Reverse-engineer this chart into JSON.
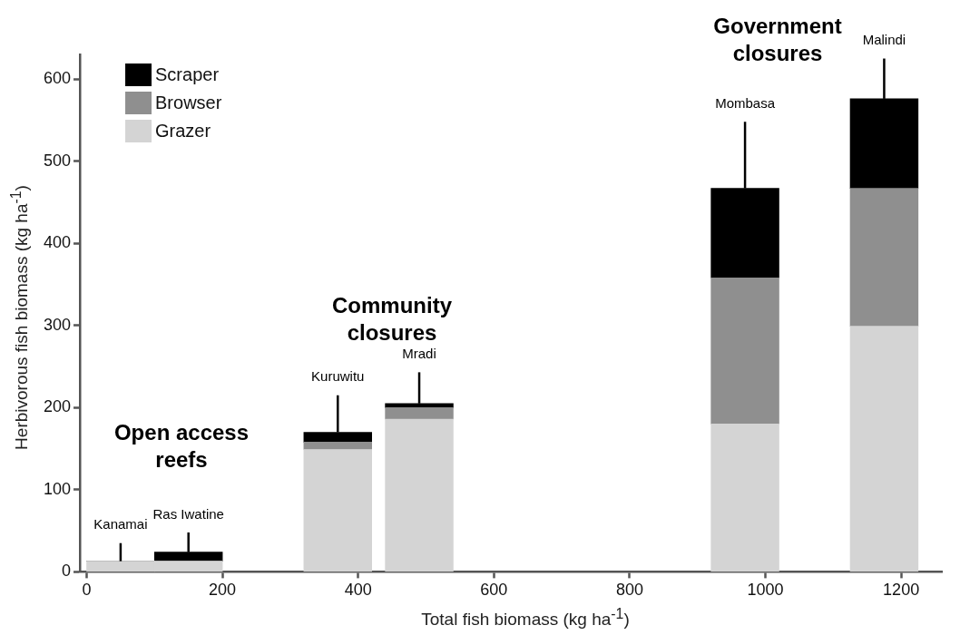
{
  "chart_data": {
    "type": "bar",
    "stacked": true,
    "xlabel": "Total fish biomass (kg ha$^{-1}$)",
    "ylabel": "Herbivorous fish biomass (kg ha$^{-1}$)",
    "x": [
      50,
      150,
      370,
      490,
      970,
      1175
    ],
    "series": [
      {
        "name": "Grazer",
        "color": "#d4d4d4",
        "values": [
          13,
          13,
          149,
          186,
          180,
          299
        ]
      },
      {
        "name": "Browser",
        "color": "#8f8f8f",
        "values": [
          0,
          0,
          9,
          14,
          178,
          168
        ]
      },
      {
        "name": "Scraper",
        "color": "#000000",
        "values": [
          0,
          11,
          12,
          5,
          109,
          109
        ],
        "errors": [
          22,
          24,
          45,
          38,
          81,
          49
        ]
      }
    ],
    "xlim": [
      -10,
      1260
    ],
    "xticks": [
      0,
      200,
      400,
      600,
      800,
      1000,
      1200
    ],
    "ylim": [
      0,
      630
    ],
    "yticks": [
      0,
      100,
      200,
      300,
      400,
      500,
      600
    ],
    "legend": "top left",
    "annotations": [
      "Kanamai",
      "Ras Iwatine",
      "Kuruwitu",
      "Mradi",
      "Mombasa",
      "Malindi",
      "Open access reefs",
      "Community closures",
      "Government closures"
    ]
  }
}
